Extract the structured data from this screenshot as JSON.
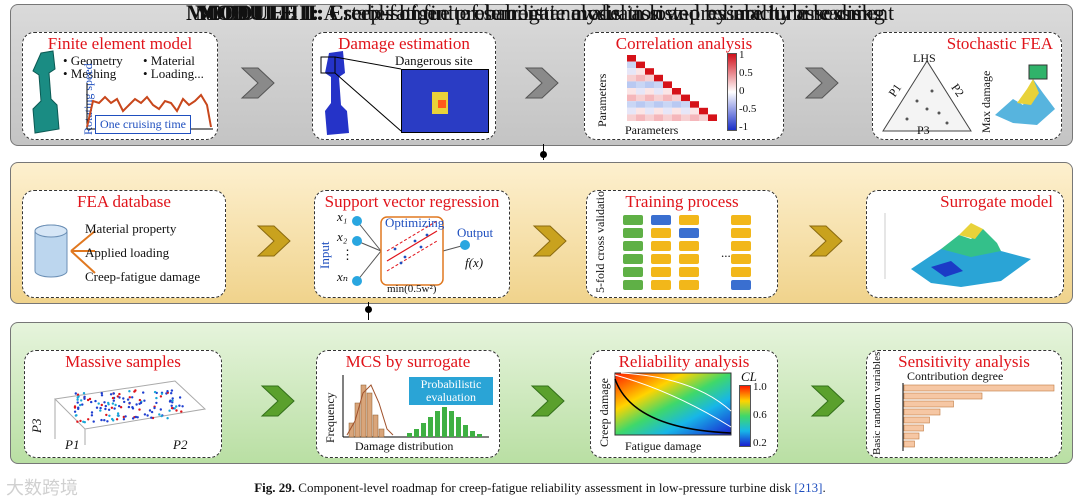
{
  "modules": {
    "m1": {
      "label": "MODULE I:",
      "title": " A series of finite element analysis in low-pressure turbine disks"
    },
    "m2": {
      "label": "MODULE II:",
      "title": " Establishment of  surrogate model assisted by machine learning"
    },
    "m3": {
      "label": "MODULE III:",
      "title": " Creep-fatigue probabilistic evaluation and reliability assessment"
    }
  },
  "m1": {
    "fem": {
      "title": "Finite element model",
      "b1": "• Geometry",
      "b2": "• Material",
      "b3": "• Meshing",
      "b4": "• Loading...",
      "ylabel": "Rotating speed",
      "box": "One cruising time"
    },
    "damage": {
      "title": "Damage estimation",
      "site": "Dangerous site"
    },
    "corr": {
      "title": "Correlation analysis",
      "ylabel": "Parameters",
      "xlabel": "Parameters",
      "ticks": [
        "1",
        "0.5",
        "0",
        "-0.5",
        "-1"
      ]
    },
    "sfea": {
      "title": "Stochastic FEA",
      "lhs": "LHS",
      "p1": "P1",
      "p2": "P2",
      "p3": "P3",
      "maxdmg": "Max damage"
    }
  },
  "m2": {
    "db": {
      "title": "FEA database",
      "i1": "Material property",
      "i2": "Applied loading",
      "i3": "Creep-fatigue damage"
    },
    "svr": {
      "title": "Support vector regression",
      "opt": "Optimizing",
      "input": "Input",
      "output": "Output",
      "fx": "f(x)",
      "minf": "min(0.5w²)",
      "x1": "x₁",
      "x2": "x₂",
      "xn": "xₙ",
      "dots": "⋮"
    },
    "train": {
      "title": "Training  process",
      "ylabel": "5-fold cross validation",
      "ellipsis": "..."
    },
    "surr": {
      "title": "Surrogate model"
    }
  },
  "m3": {
    "ms": {
      "title": "Massive samples",
      "p1": "P1",
      "p2": "P2",
      "p3": "P3"
    },
    "mcs": {
      "title": "MCS by surrogate",
      "ylabel": "Frequency",
      "xlabel": "Damage distribution",
      "prob": "Probabilistic evaluation"
    },
    "rel": {
      "title": "Reliability analysis",
      "ylabel": "Creep damage",
      "xlabel": "Fatigue damage",
      "cl": "CL",
      "t1": "1.0",
      "t2": "0.6",
      "t3": "0.2"
    },
    "sens": {
      "title": "Sensitivity analysis",
      "contrib": "Contribution degree",
      "ylabel": "Basic random variables",
      "bars": [
        1.0,
        0.52,
        0.33,
        0.24,
        0.17,
        0.13,
        0.1,
        0.07
      ]
    }
  },
  "caption": {
    "fig": "Fig. 29.",
    "text": " Component-level roadmap for creep-fatigue reliability assessment in low-pressure turbine disk ",
    "ref": "[213]",
    "end": "."
  },
  "watermark": "大数跨境",
  "colors": {
    "red": "#e0141b",
    "blue": "#1f4fbf",
    "chev1": "#8a8a8a",
    "chev2": "#c9a21e",
    "chev3": "#5aa02c"
  }
}
